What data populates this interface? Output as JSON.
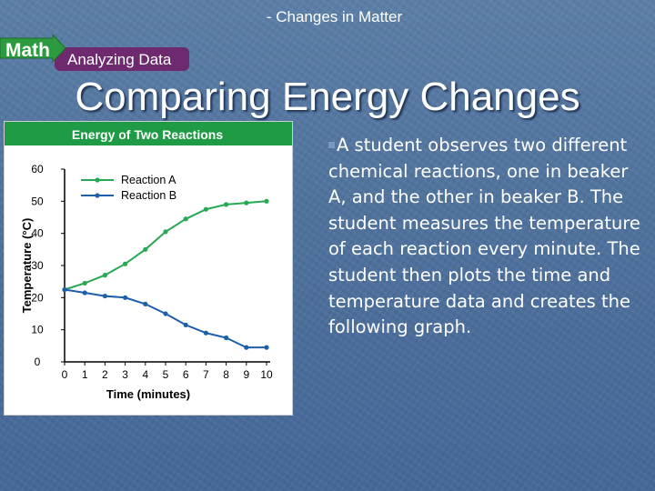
{
  "header": {
    "text": "- Changes in Matter"
  },
  "badge": {
    "math": "Math",
    "analyzing": "Analyzing Data"
  },
  "slide": {
    "title": "Comparing Energy Changes"
  },
  "body": {
    "text": "A student observes two different chemical reactions, one in beaker A, and the other in beaker B. The student measures the temperature of each reaction every minute. The student then plots the time and temperature data and creates the following graph."
  },
  "colors": {
    "header_bar": "#1f9a45",
    "series_a": "#27a852",
    "series_b": "#1d5fa8",
    "badge_green": "#2c9a3f",
    "badge_purple": "#6d2a6e"
  },
  "chart_data": {
    "type": "line",
    "title": "Energy of Two Reactions",
    "xlabel": "Time (minutes)",
    "ylabel": "Temperature (°C)",
    "xlim": [
      0,
      10
    ],
    "ylim": [
      0,
      60
    ],
    "xticks": [
      0,
      1,
      2,
      3,
      4,
      5,
      6,
      7,
      8,
      9,
      10
    ],
    "yticks": [
      0,
      10,
      20,
      30,
      40,
      50,
      60
    ],
    "legend_position": "top-left",
    "grid": false,
    "x": [
      0,
      1,
      2,
      3,
      4,
      5,
      6,
      7,
      8,
      9,
      10
    ],
    "series": [
      {
        "name": "Reaction A",
        "values": [
          22.5,
          24.5,
          27,
          30.5,
          35,
          40.5,
          44.5,
          47.5,
          49,
          49.5,
          50
        ],
        "color": "#27a852"
      },
      {
        "name": "Reaction B",
        "values": [
          22.5,
          21.5,
          20.5,
          20,
          18,
          15,
          11.5,
          9,
          7.5,
          4.5,
          4.5
        ],
        "color": "#1d5fa8"
      }
    ]
  }
}
